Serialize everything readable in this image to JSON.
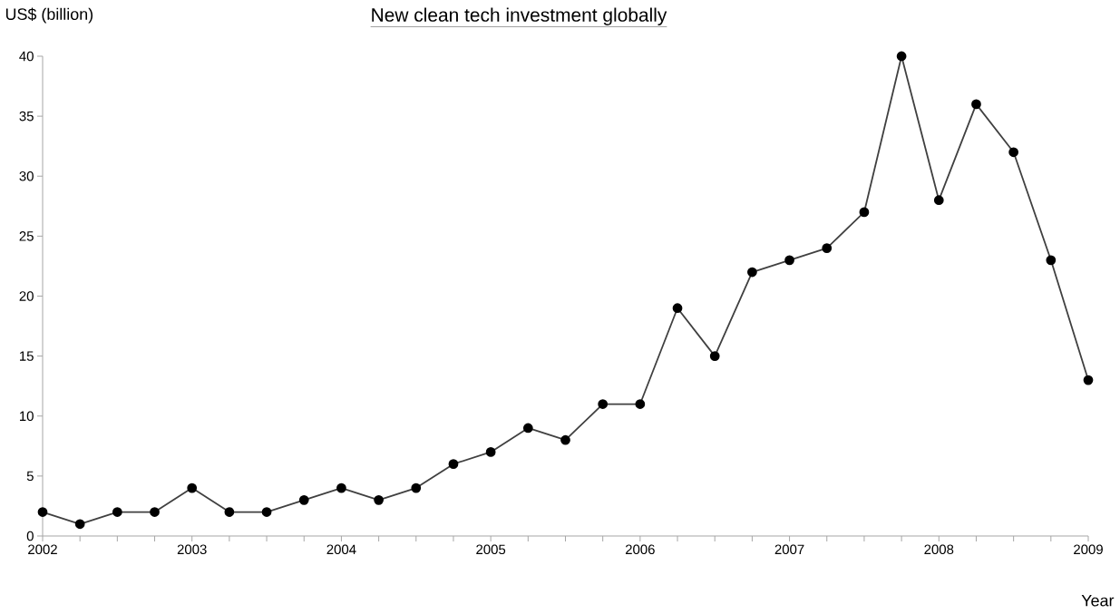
{
  "chart_data": {
    "type": "line",
    "title": "New clean tech investment globally",
    "ylabel": "US$ (billion)",
    "xlabel": "Year",
    "x": [
      2002,
      2002.25,
      2002.5,
      2002.75,
      2003,
      2003.25,
      2003.5,
      2003.75,
      2004,
      2004.25,
      2004.5,
      2004.75,
      2005,
      2005.25,
      2005.5,
      2005.75,
      2006,
      2006.25,
      2006.5,
      2006.75,
      2007,
      2007.25,
      2007.5,
      2007.75,
      2008,
      2008.25,
      2008.5,
      2008.75,
      2009
    ],
    "series": [
      {
        "color": "#404040",
        "values": [
          2,
          1,
          2,
          2,
          4,
          2,
          2,
          3,
          4,
          3,
          4,
          6,
          7,
          9,
          8,
          11,
          11,
          19,
          15,
          22,
          23,
          24,
          27,
          40,
          28,
          36,
          32,
          23,
          13
        ]
      }
    ],
    "xlim": [
      2002,
      2009
    ],
    "ylim": [
      0,
      40
    ],
    "xticks": [
      2002,
      {
        "value": 2002.25,
        "label": null
      },
      {
        "value": 2002.5,
        "label": null
      },
      {
        "value": 2002.75,
        "label": null
      },
      2003,
      {
        "value": 2003.25,
        "label": null
      },
      {
        "value": 2003.5,
        "label": null
      },
      {
        "value": 2003.75,
        "label": null
      },
      2004,
      {
        "value": 2004.25,
        "label": null
      },
      {
        "value": 2004.5,
        "label": null
      },
      {
        "value": 2004.75,
        "label": null
      },
      2005,
      {
        "value": 2005.25,
        "label": null
      },
      {
        "value": 2005.5,
        "label": null
      },
      {
        "value": 2005.75,
        "label": null
      },
      2006,
      {
        "value": 2006.25,
        "label": null
      },
      {
        "value": 2006.5,
        "label": null
      },
      {
        "value": 2006.75,
        "label": null
      },
      2007,
      {
        "value": 2007.25,
        "label": null
      },
      {
        "value": 2007.5,
        "label": null
      },
      {
        "value": 2007.75,
        "label": null
      },
      2008,
      {
        "value": 2008.25,
        "label": null
      },
      {
        "value": 2008.5,
        "label": null
      },
      {
        "value": 2008.75,
        "label": null
      },
      2009
    ],
    "yticks": [
      0,
      5,
      10,
      15,
      20,
      25,
      30,
      35,
      40
    ],
    "marker": "circle",
    "line_style": "solid",
    "grid": false,
    "legend": false
  }
}
